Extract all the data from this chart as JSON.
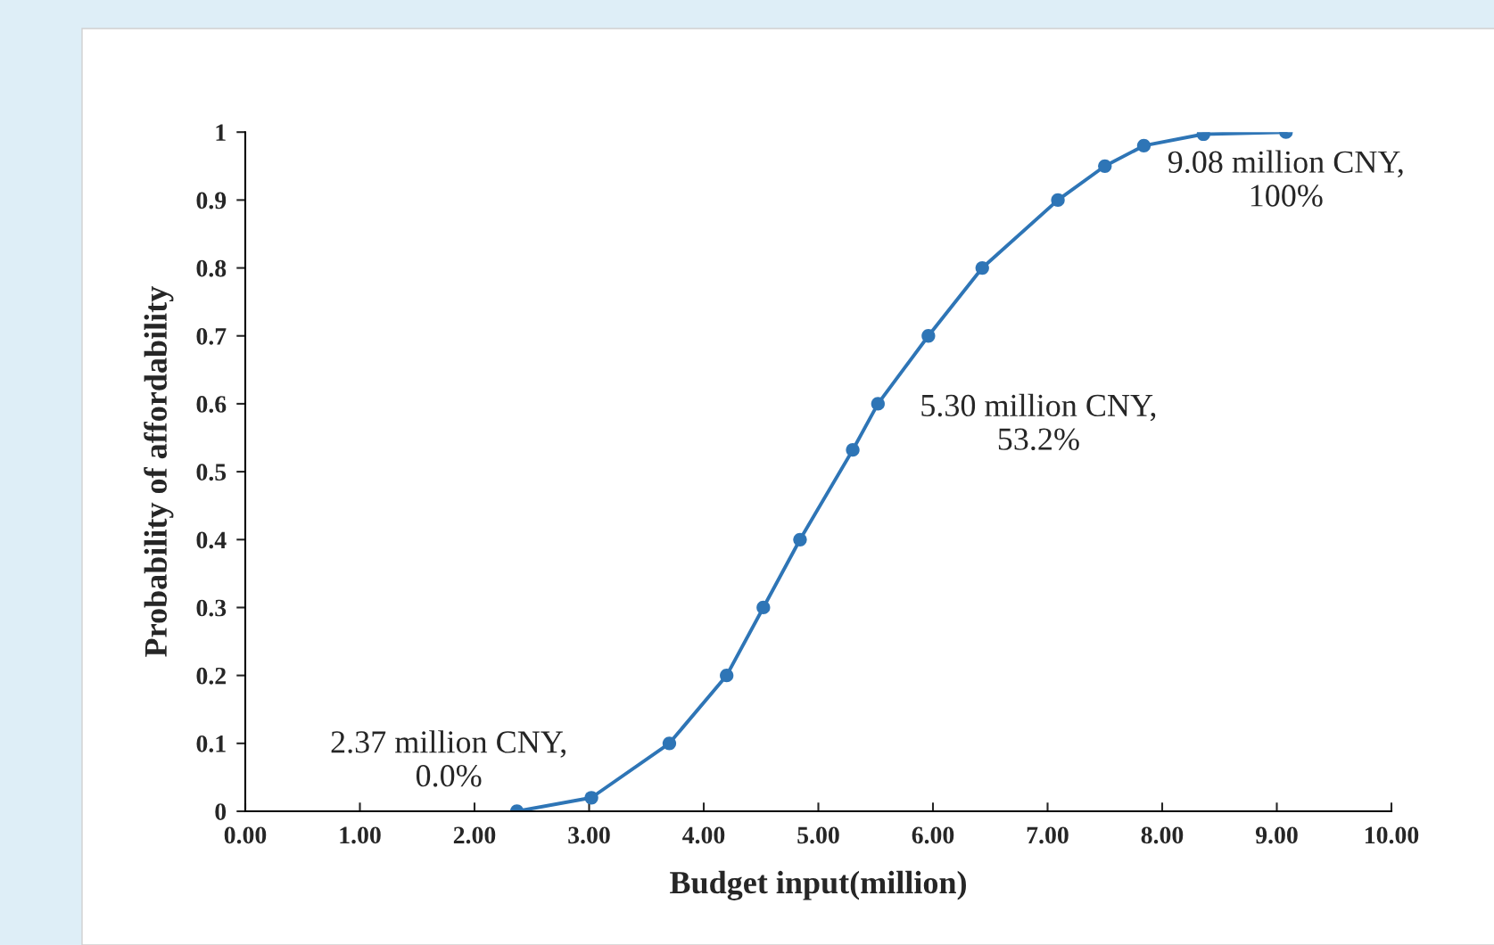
{
  "chart_data": {
    "type": "line",
    "xlabel": "Budget input(million)",
    "ylabel": "Probability of affordability",
    "x": [
      2.37,
      3.02,
      3.7,
      4.2,
      4.52,
      4.84,
      5.3,
      5.52,
      5.96,
      6.43,
      7.09,
      7.5,
      7.84,
      8.36,
      9.08
    ],
    "series": [
      {
        "color": "#2e75b6",
        "values": [
          0,
          0.02,
          0.1,
          0.2,
          0.3,
          0.4,
          0.532,
          0.6,
          0.7,
          0.8,
          0.9,
          0.95,
          0.98,
          0.997,
          1.0
        ]
      }
    ],
    "marker": "circle",
    "line_style": "solid",
    "xlim": [
      0,
      10
    ],
    "ylim": [
      0,
      1
    ],
    "xticks": [
      {
        "value": 0,
        "label": "0.00"
      },
      {
        "value": 1,
        "label": "1.00"
      },
      {
        "value": 2,
        "label": "2.00"
      },
      {
        "value": 3,
        "label": "3.00"
      },
      {
        "value": 4,
        "label": "4.00"
      },
      {
        "value": 5,
        "label": "5.00"
      },
      {
        "value": 6,
        "label": "6.00"
      },
      {
        "value": 7,
        "label": "7.00"
      },
      {
        "value": 8,
        "label": "8.00"
      },
      {
        "value": 9,
        "label": "9.00"
      },
      {
        "value": 10,
        "label": "10.00"
      }
    ],
    "yticks": [
      0,
      0.1,
      0.2,
      0.3,
      0.4,
      0.5,
      0.6,
      0.7,
      0.8,
      0.9,
      1
    ],
    "annotations": [
      {
        "text": "2.37 million CNY,\n0.0%",
        "x": 2.37,
        "y": 0
      },
      {
        "text": "5.30 million CNY,\n53.2%",
        "x": 5.3,
        "y": 0.532
      },
      {
        "text": "9.08 million CNY,\n100%",
        "x": 9.08,
        "y": 1.0
      }
    ]
  }
}
